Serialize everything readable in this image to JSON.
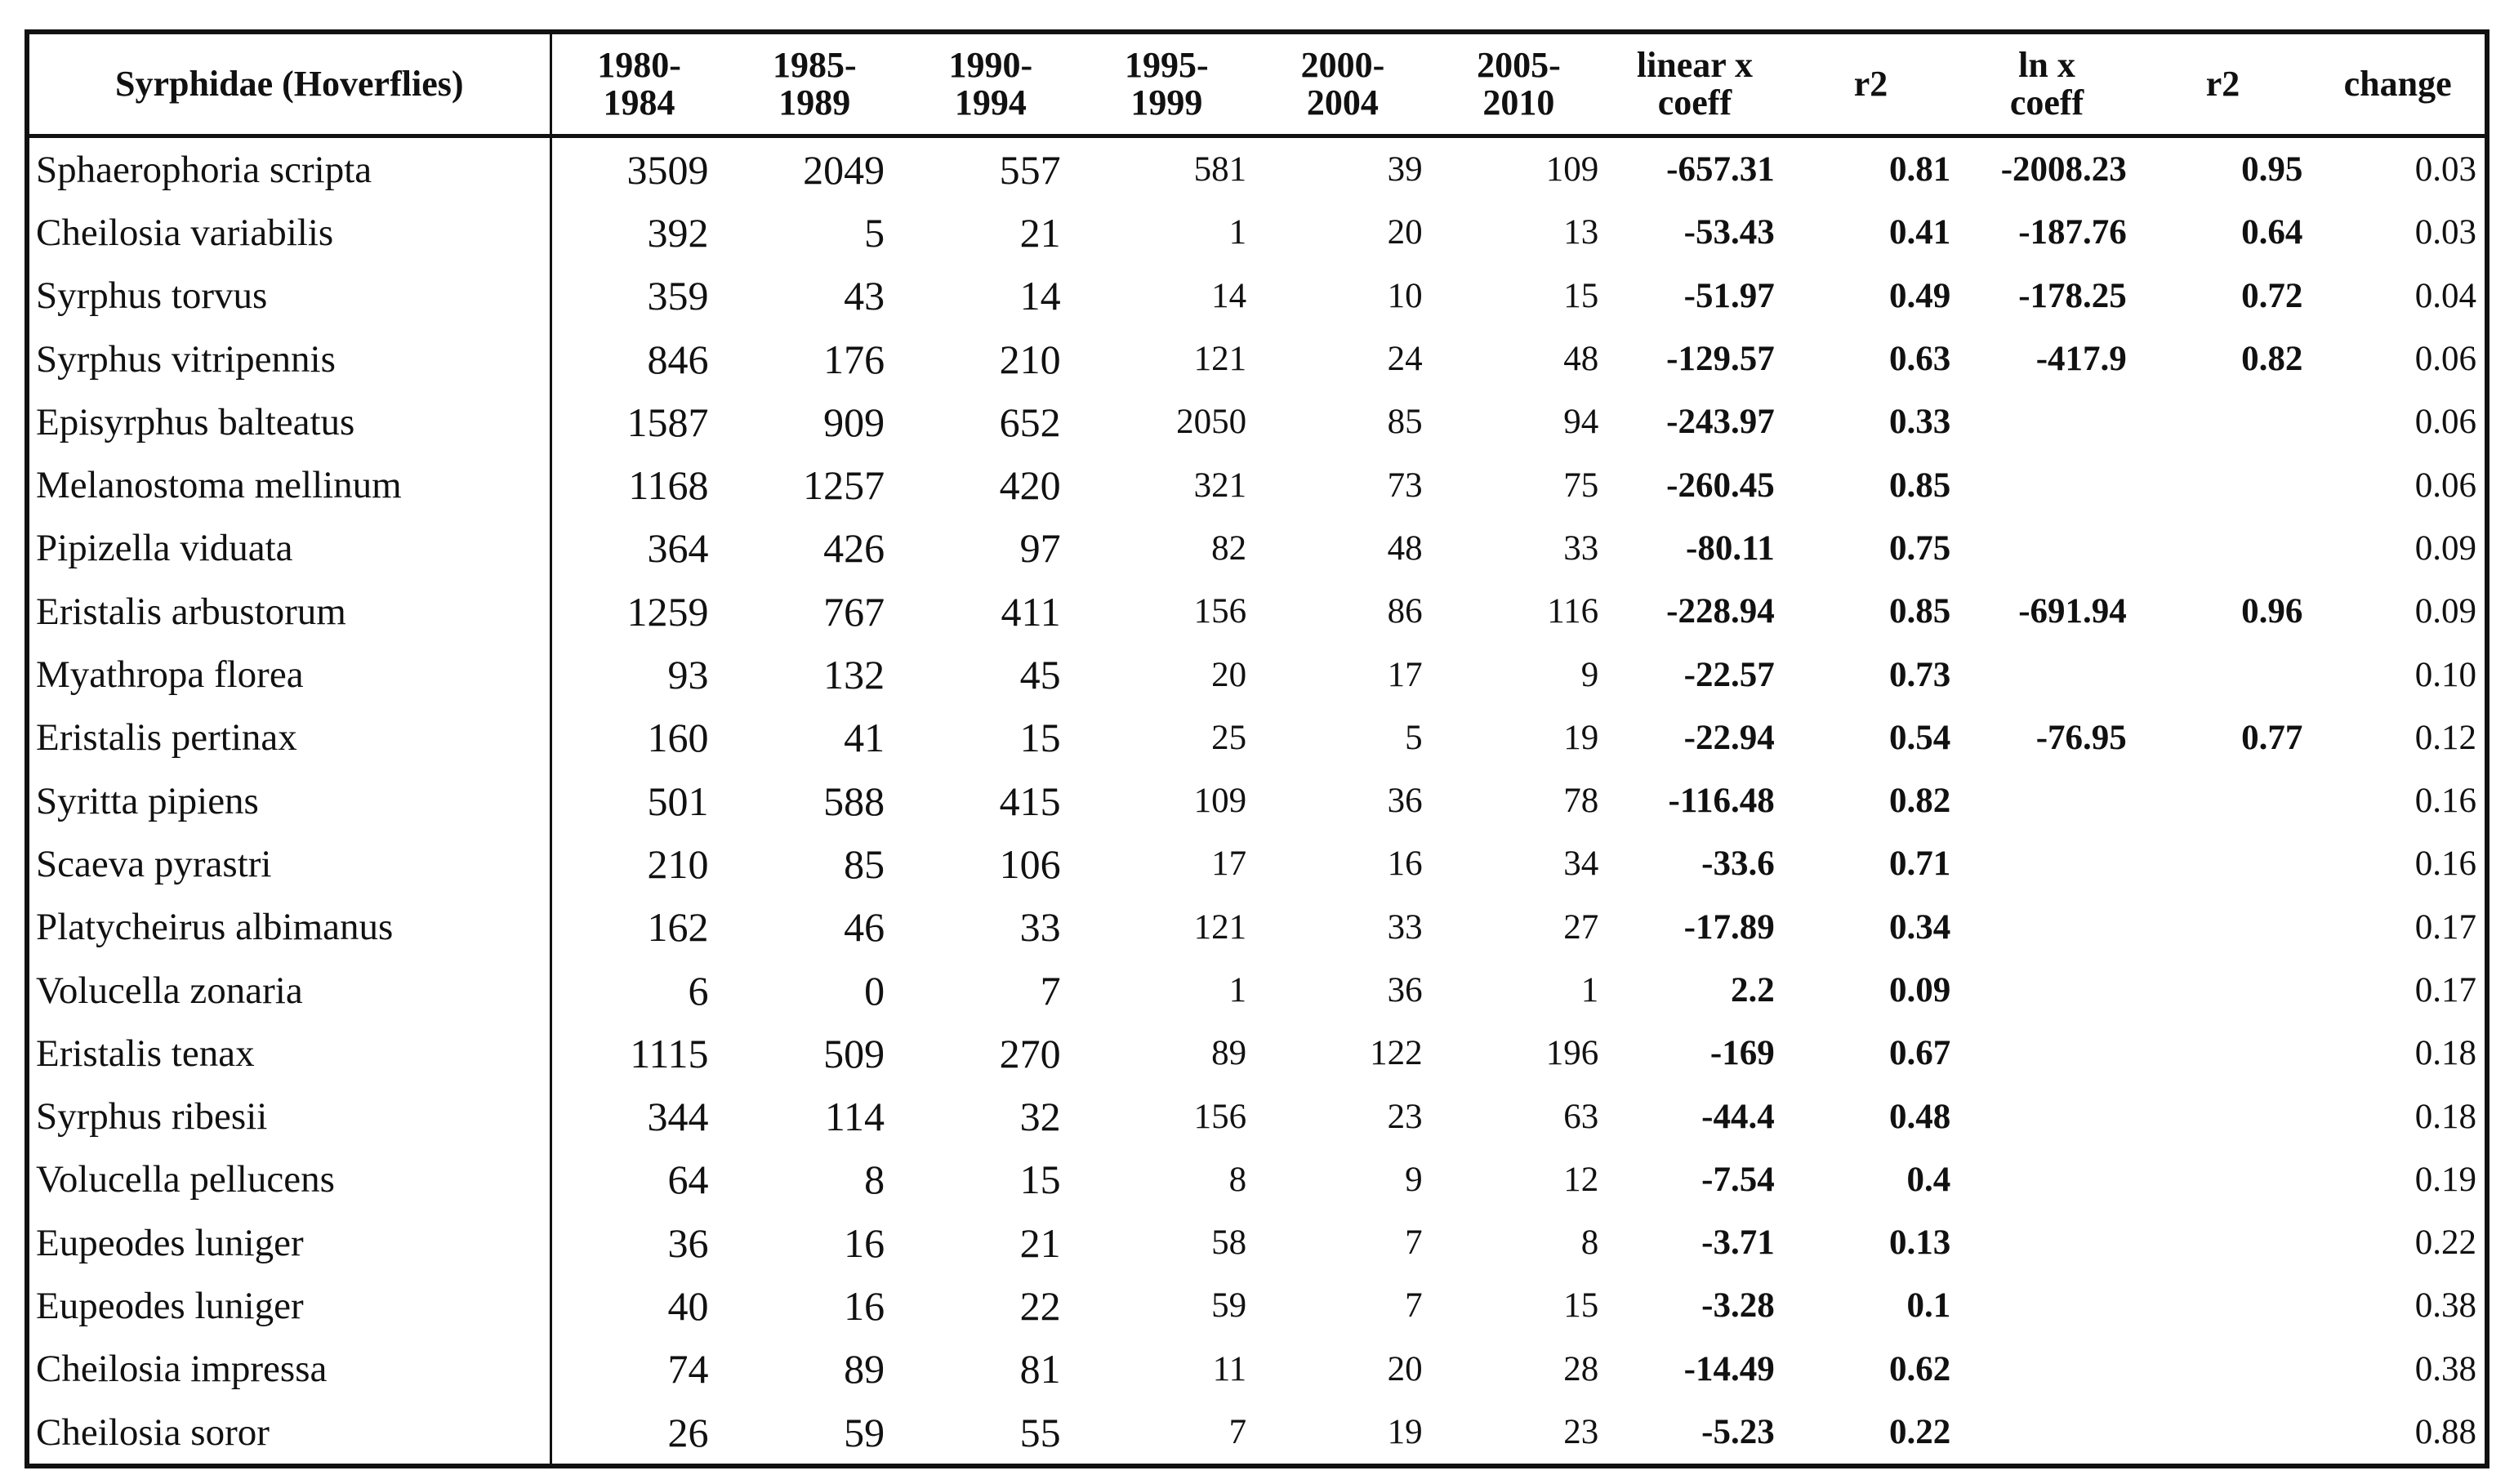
{
  "header": {
    "columns": [
      [
        "Syrphidae (Hoverflies)"
      ],
      [
        "1980-",
        "1984"
      ],
      [
        "1985-",
        "1989"
      ],
      [
        "1990-",
        "1994"
      ],
      [
        "1995-",
        "1999"
      ],
      [
        "2000-",
        "2004"
      ],
      [
        "2005-",
        "2010"
      ],
      [
        "linear x",
        "coeff"
      ],
      [
        "r2"
      ],
      [
        "ln x",
        "coeff"
      ],
      [
        "r2"
      ],
      [
        "change"
      ]
    ]
  },
  "table": {
    "rows": [
      {
        "species": "Sphaerophoria scripta",
        "counts": [
          "3509",
          "2049",
          "557",
          "581",
          "39",
          "109"
        ],
        "linear_coeff": "-657.31",
        "linear_r2": "0.81",
        "ln_coeff": "-2008.23",
        "ln_r2": "0.95",
        "change": "0.03"
      },
      {
        "species": "Cheilosia variabilis",
        "counts": [
          "392",
          "5",
          "21",
          "1",
          "20",
          "13"
        ],
        "linear_coeff": "-53.43",
        "linear_r2": "0.41",
        "ln_coeff": "-187.76",
        "ln_r2": "0.64",
        "change": "0.03"
      },
      {
        "species": "Syrphus torvus",
        "counts": [
          "359",
          "43",
          "14",
          "14",
          "10",
          "15"
        ],
        "linear_coeff": "-51.97",
        "linear_r2": "0.49",
        "ln_coeff": "-178.25",
        "ln_r2": "0.72",
        "change": "0.04"
      },
      {
        "species": "Syrphus vitripennis",
        "counts": [
          "846",
          "176",
          "210",
          "121",
          "24",
          "48"
        ],
        "linear_coeff": "-129.57",
        "linear_r2": "0.63",
        "ln_coeff": "-417.9",
        "ln_r2": "0.82",
        "change": "0.06"
      },
      {
        "species": "Episyrphus balteatus",
        "counts": [
          "1587",
          "909",
          "652",
          "2050",
          "85",
          "94"
        ],
        "linear_coeff": "-243.97",
        "linear_r2": "0.33",
        "change": "0.06"
      },
      {
        "species": "Melanostoma mellinum",
        "counts": [
          "1168",
          "1257",
          "420",
          "321",
          "73",
          "75"
        ],
        "linear_coeff": "-260.45",
        "linear_r2": "0.85",
        "change": "0.06"
      },
      {
        "species": "Pipizella viduata",
        "counts": [
          "364",
          "426",
          "97",
          "82",
          "48",
          "33"
        ],
        "linear_coeff": "-80.11",
        "linear_r2": "0.75",
        "change": "0.09"
      },
      {
        "species": "Eristalis arbustorum",
        "counts": [
          "1259",
          "767",
          "411",
          "156",
          "86",
          "116"
        ],
        "linear_coeff": "-228.94",
        "linear_r2": "0.85",
        "ln_coeff": "-691.94",
        "ln_r2": "0.96",
        "change": "0.09"
      },
      {
        "species": "Myathropa florea",
        "counts": [
          "93",
          "132",
          "45",
          "20",
          "17",
          "9"
        ],
        "linear_coeff": "-22.57",
        "linear_r2": "0.73",
        "change": "0.10"
      },
      {
        "species": "Eristalis pertinax",
        "counts": [
          "160",
          "41",
          "15",
          "25",
          "5",
          "19"
        ],
        "linear_coeff": "-22.94",
        "linear_r2": "0.54",
        "ln_coeff": "-76.95",
        "ln_r2": "0.77",
        "change": "0.12"
      },
      {
        "species": "Syritta pipiens",
        "counts": [
          "501",
          "588",
          "415",
          "109",
          "36",
          "78"
        ],
        "linear_coeff": "-116.48",
        "linear_r2": "0.82",
        "change": "0.16"
      },
      {
        "species": "Scaeva pyrastri",
        "counts": [
          "210",
          "85",
          "106",
          "17",
          "16",
          "34"
        ],
        "linear_coeff": "-33.6",
        "linear_r2": "0.71",
        "change": "0.16"
      },
      {
        "species": "Platycheirus albimanus",
        "counts": [
          "162",
          "46",
          "33",
          "121",
          "33",
          "27"
        ],
        "linear_coeff": "-17.89",
        "linear_r2": "0.34",
        "change": "0.17"
      },
      {
        "species": "Volucella zonaria",
        "counts": [
          "6",
          "0",
          "7",
          "1",
          "36",
          "1"
        ],
        "linear_coeff": "2.2",
        "linear_r2": "0.09",
        "change": "0.17"
      },
      {
        "species": "Eristalis tenax",
        "counts": [
          "1115",
          "509",
          "270",
          "89",
          "122",
          "196"
        ],
        "linear_coeff": "-169",
        "linear_r2": "0.67",
        "change": "0.18"
      },
      {
        "species": "Syrphus ribesii",
        "counts": [
          "344",
          "114",
          "32",
          "156",
          "23",
          "63"
        ],
        "linear_coeff": "-44.4",
        "linear_r2": "0.48",
        "change": "0.18"
      },
      {
        "species": "Volucella pellucens",
        "counts": [
          "64",
          "8",
          "15",
          "8",
          "9",
          "12"
        ],
        "linear_coeff": "-7.54",
        "linear_r2": "0.4",
        "change": "0.19"
      },
      {
        "species": "Eupeodes luniger",
        "counts": [
          "36",
          "16",
          "21",
          "58",
          "7",
          "8"
        ],
        "linear_coeff": "-3.71",
        "linear_r2": "0.13",
        "change": "0.22"
      },
      {
        "species": "Eupeodes luniger",
        "counts": [
          "40",
          "16",
          "22",
          "59",
          "7",
          "15"
        ],
        "linear_coeff": "-3.28",
        "linear_r2": "0.1",
        "change": "0.38"
      },
      {
        "species": "Cheilosia impressa",
        "counts": [
          "74",
          "89",
          "81",
          "11",
          "20",
          "28"
        ],
        "linear_coeff": "-14.49",
        "linear_r2": "0.62",
        "change": "0.38"
      },
      {
        "species": "Cheilosia soror",
        "counts": [
          "26",
          "59",
          "55",
          "7",
          "19",
          "23"
        ],
        "linear_coeff": "-5.23",
        "linear_r2": "0.22",
        "change": "0.88"
      }
    ]
  }
}
